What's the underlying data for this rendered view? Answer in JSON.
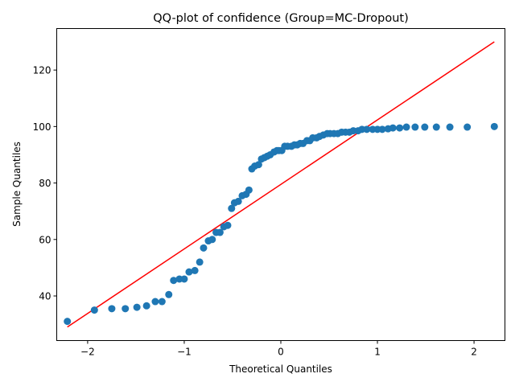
{
  "chart_data": {
    "type": "scatter",
    "title": "QQ-plot of confidence (Group=MC-Dropout)",
    "xlabel": "Theoretical Quantiles",
    "ylabel": "Sample Quantiles",
    "xlim": [
      -2.32,
      2.32
    ],
    "ylim": [
      24.2,
      134.7
    ],
    "xticks": [
      -2,
      -1,
      0,
      1,
      2
    ],
    "xtick_labels": [
      "−2",
      "−1",
      "0",
      "1",
      "2"
    ],
    "yticks": [
      40,
      60,
      80,
      100,
      120
    ],
    "ytick_labels": [
      "40",
      "60",
      "80",
      "100",
      "120"
    ],
    "grid": false,
    "legend": "none",
    "series": [
      {
        "kind": "points",
        "color": "#1f77b4",
        "x": [
          -2.21,
          -1.93,
          -1.75,
          -1.61,
          -1.49,
          -1.39,
          -1.3,
          -1.23,
          -1.16,
          -1.11,
          -1.05,
          -1.0,
          -0.95,
          -0.89,
          -0.84,
          -0.8,
          -0.75,
          -0.71,
          -0.67,
          -0.63,
          -0.59,
          -0.55,
          -0.51,
          -0.48,
          -0.44,
          -0.4,
          -0.36,
          -0.33,
          -0.3,
          -0.27,
          -0.23,
          -0.2,
          -0.17,
          -0.14,
          -0.11,
          -0.07,
          -0.04,
          -0.02,
          0.01,
          0.04,
          0.07,
          0.11,
          0.14,
          0.17,
          0.2,
          0.23,
          0.27,
          0.3,
          0.33,
          0.37,
          0.4,
          0.44,
          0.48,
          0.51,
          0.55,
          0.59,
          0.63,
          0.67,
          0.71,
          0.75,
          0.8,
          0.84,
          0.89,
          0.95,
          1.0,
          1.05,
          1.11,
          1.16,
          1.23,
          1.3,
          1.39,
          1.49,
          1.61,
          1.75,
          1.93,
          2.21
        ],
        "y": [
          31.0,
          35.0,
          35.5,
          35.5,
          36.0,
          36.5,
          38.0,
          38.0,
          40.5,
          45.5,
          46.0,
          46.0,
          48.5,
          49.0,
          52.0,
          57.0,
          59.5,
          60.0,
          62.5,
          62.5,
          64.5,
          65.0,
          71.0,
          73.0,
          73.5,
          75.5,
          76.0,
          77.5,
          85.0,
          86.0,
          86.5,
          88.5,
          89.0,
          89.5,
          90.0,
          91.0,
          91.5,
          91.5,
          91.5,
          93.0,
          93.0,
          93.0,
          93.5,
          93.5,
          94.0,
          94.0,
          95.0,
          95.0,
          96.0,
          96.0,
          96.5,
          97.0,
          97.5,
          97.5,
          97.5,
          97.5,
          98.0,
          98.0,
          98.0,
          98.5,
          98.5,
          99.0,
          99.0,
          99.0,
          99.0,
          99.0,
          99.2,
          99.5,
          99.5,
          99.8,
          99.8,
          99.8,
          99.8,
          99.8,
          99.8,
          100.0
        ]
      },
      {
        "kind": "line",
        "color": "#ff0000",
        "x": [
          -2.21,
          2.21
        ],
        "y": [
          29.0,
          130.0
        ]
      }
    ]
  }
}
